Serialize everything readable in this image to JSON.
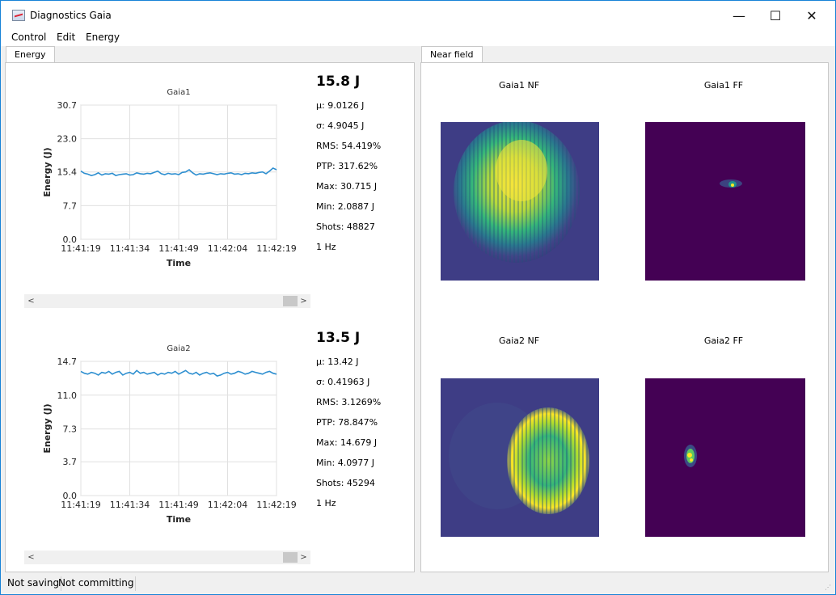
{
  "window": {
    "title": "Diagnostics Gaia",
    "controls": {
      "minimize": "—",
      "maximize": "☐",
      "close": "✕"
    }
  },
  "menu": {
    "items": [
      "Control",
      "Edit",
      "Energy"
    ]
  },
  "left_tab": {
    "label": "Energy"
  },
  "right_tab": {
    "label": "Near field"
  },
  "scroll": {
    "left": "<",
    "right": ">"
  },
  "charts": {
    "gaia1": {
      "headline": "15.8 J",
      "stats": [
        "μ: 9.0126 J",
        "σ: 4.9045 J",
        "RMS: 54.419%",
        "PTP: 317.62%",
        "Max: 30.715 J",
        "Min: 2.0887 J",
        "Shots: 48827",
        "1 Hz"
      ]
    },
    "gaia2": {
      "headline": "13.5 J",
      "stats": [
        "μ: 13.42 J",
        "σ: 0.41963 J",
        "RMS: 3.1269%",
        "PTP: 78.847%",
        "Max: 14.679 J",
        "Min: 4.0977 J",
        "Shots: 45294",
        "1 Hz"
      ]
    }
  },
  "chart_data": [
    {
      "type": "line",
      "title": "Gaia1",
      "xlabel": "Time",
      "ylabel": "Energy (J)",
      "yticks": [
        "0.0",
        "7.7",
        "15.4",
        "23.0",
        "30.7"
      ],
      "xticks": [
        "11:41:19",
        "11:41:34",
        "11:41:49",
        "11:42:04",
        "11:42:19"
      ],
      "ylim": [
        0,
        30.7
      ],
      "grid": true,
      "color": "#2e8fd0",
      "series": [
        {
          "values": [
            15.6,
            15.1,
            14.9,
            14.6,
            14.8,
            15.2,
            14.7,
            15.0,
            14.9,
            15.1,
            14.6,
            14.8,
            14.9,
            15.0,
            14.7,
            14.8,
            15.2,
            15.0,
            14.9,
            15.1,
            15.0,
            15.3,
            15.6,
            15.0,
            14.8,
            15.1,
            14.9,
            15.0,
            14.8,
            15.3,
            15.4,
            15.9,
            15.2,
            14.7,
            15.0,
            14.9,
            15.1,
            15.2,
            15.0,
            14.8,
            15.0,
            14.9,
            15.1,
            15.2,
            14.9,
            15.0,
            14.8,
            15.1,
            15.0,
            15.2,
            15.1,
            15.3,
            15.4,
            15.0,
            15.6,
            16.3,
            15.9
          ]
        }
      ]
    },
    {
      "type": "line",
      "title": "Gaia2",
      "xlabel": "Time",
      "ylabel": "Energy (J)",
      "yticks": [
        "0.0",
        "3.7",
        "7.3",
        "11.0",
        "14.7"
      ],
      "xticks": [
        "11:41:19",
        "11:41:34",
        "11:41:49",
        "11:42:04",
        "11:42:19"
      ],
      "ylim": [
        0,
        14.7
      ],
      "grid": true,
      "color": "#2e8fd0",
      "series": [
        {
          "values": [
            13.6,
            13.4,
            13.3,
            13.5,
            13.4,
            13.2,
            13.5,
            13.4,
            13.6,
            13.3,
            13.5,
            13.6,
            13.2,
            13.4,
            13.5,
            13.3,
            13.7,
            13.4,
            13.5,
            13.3,
            13.4,
            13.5,
            13.2,
            13.4,
            13.3,
            13.5,
            13.4,
            13.6,
            13.3,
            13.5,
            13.7,
            13.4,
            13.3,
            13.5,
            13.2,
            13.4,
            13.5,
            13.3,
            13.4,
            13.1,
            13.2,
            13.4,
            13.5,
            13.3,
            13.4,
            13.6,
            13.5,
            13.3,
            13.4,
            13.6,
            13.5,
            13.4,
            13.3,
            13.5,
            13.6,
            13.4,
            13.3
          ]
        }
      ]
    }
  ],
  "images": {
    "gaia1_nf": {
      "title": "Gaia1 NF"
    },
    "gaia1_ff": {
      "title": "Gaia1 FF"
    },
    "gaia2_nf": {
      "title": "Gaia2 NF"
    },
    "gaia2_ff": {
      "title": "Gaia2 FF"
    }
  },
  "colors": {
    "viridis_dark": "#440154",
    "viridis_blue": "#3b528b",
    "viridis_green": "#21918c",
    "viridis_yellow": "#fde725"
  },
  "status": {
    "saving": "Not saving",
    "committing": "Not committing"
  }
}
